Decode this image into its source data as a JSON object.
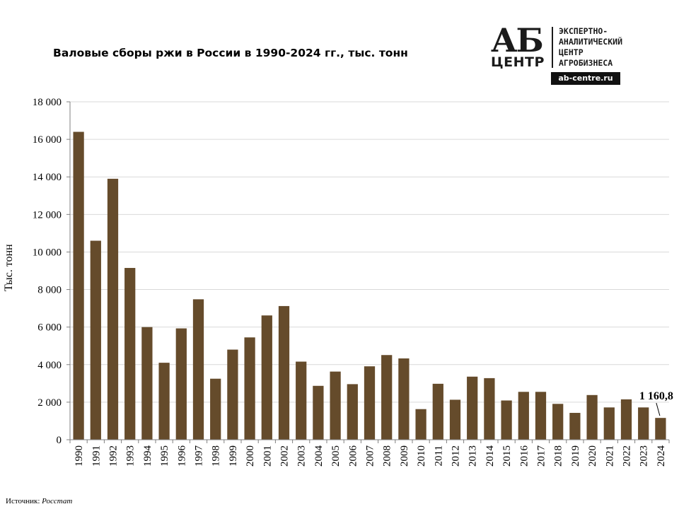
{
  "logo": {
    "ab": "АБ",
    "centr": "ЦЕНТР",
    "lines": [
      "ЭКСПЕРТНО-",
      "АНАЛИТИЧЕСКИЙ",
      "ЦЕНТР",
      "АГРОБИЗНЕСА"
    ],
    "url": "ab-centre.ru"
  },
  "source": {
    "prefix": "Источник: ",
    "name": "Росстат"
  },
  "chart_data": {
    "type": "bar",
    "title": "Валовые сборы ржи в России в 1990-2024 гг., тыс. тонн",
    "ylabel": "Тыс. тонн",
    "xlabel": "",
    "ylim": [
      0,
      18000
    ],
    "yticks": [
      0,
      2000,
      4000,
      6000,
      8000,
      10000,
      12000,
      14000,
      16000,
      18000
    ],
    "ytick_labels": [
      "0",
      "2 000",
      "4 000",
      "6 000",
      "8 000",
      "10 000",
      "12 000",
      "14 000",
      "16 000",
      "18 000"
    ],
    "grid": true,
    "bar_color": "#654b2b",
    "categories": [
      "1990",
      "1991",
      "1992",
      "1993",
      "1994",
      "1995",
      "1996",
      "1997",
      "1998",
      "1999",
      "2000",
      "2001",
      "2002",
      "2003",
      "2004",
      "2005",
      "2006",
      "2007",
      "2008",
      "2009",
      "2010",
      "2011",
      "2012",
      "2013",
      "2014",
      "2015",
      "2016",
      "2017",
      "2018",
      "2019",
      "2020",
      "2021",
      "2022",
      "2023",
      "2024"
    ],
    "values": [
      16400,
      10600,
      13900,
      9150,
      6000,
      4100,
      5930,
      7480,
      3250,
      4800,
      5450,
      6620,
      7120,
      4160,
      2870,
      3630,
      2960,
      3910,
      4510,
      4330,
      1630,
      2980,
      2130,
      3360,
      3280,
      2090,
      2550,
      2550,
      1910,
      1430,
      2380,
      1720,
      2150,
      1720,
      1160.8
    ],
    "annotation": {
      "category": "2024",
      "text": "1 160,8"
    }
  }
}
